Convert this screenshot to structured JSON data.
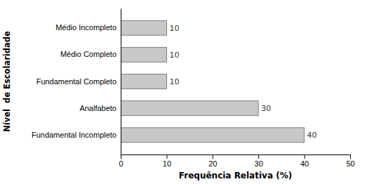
{
  "chart_data": {
    "type": "bar",
    "orientation": "horizontal",
    "categories": [
      "Fundamental Incompleto",
      "Analfabeto",
      "Fundamental Completo",
      "Médio Completo",
      "Médio Incompleto"
    ],
    "values": [
      40,
      30,
      10,
      10,
      10
    ],
    "color": "#c8c8c8",
    "xlabel": "Frequência Relativa (%)",
    "ylabel": "Nível  de Escolaridade",
    "xlim": [
      0,
      50
    ],
    "xticks": [
      0,
      10,
      20,
      30,
      40,
      50
    ],
    "data_labels": true,
    "grid": false
  }
}
